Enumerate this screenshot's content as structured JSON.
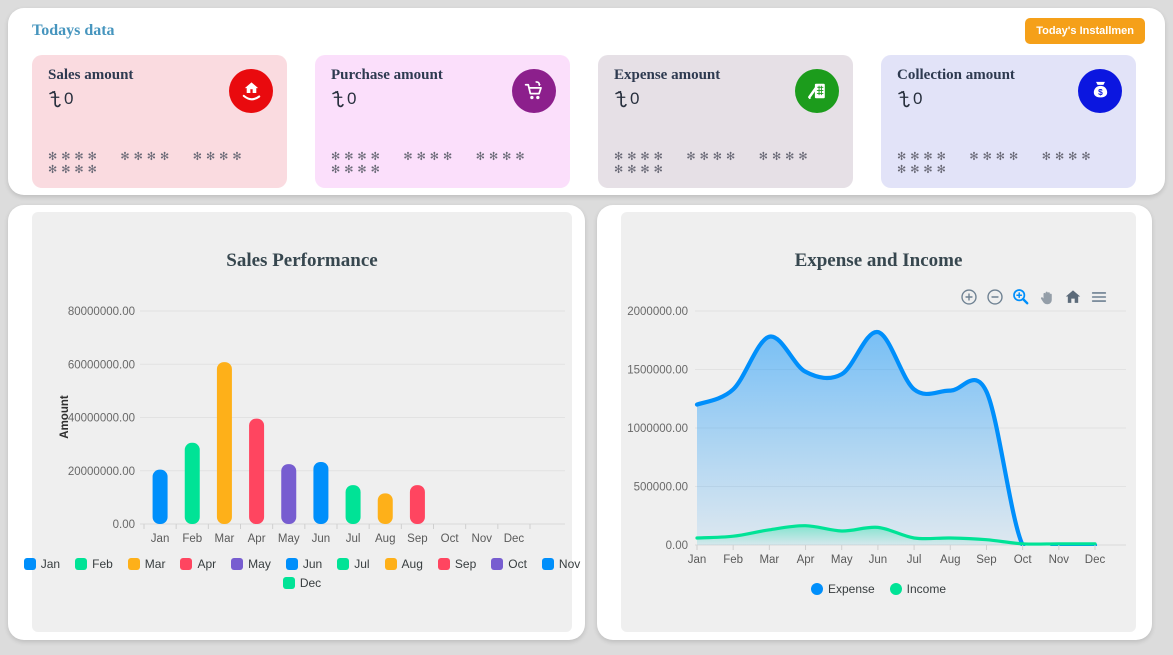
{
  "header": {
    "title": "Todays data",
    "title_color": "#4695BE",
    "button_label": "Today's Installmen",
    "button_bg": "#F5A019"
  },
  "cards": [
    {
      "title": "Sales amount",
      "currency": "৳",
      "amount": "0",
      "masked": "✻✻✻✻ ✻✻✻✻ ✻✻✻✻ ✻✻✻✻",
      "bg": "#FADBE0",
      "icon": "hand-house-icon",
      "icon_bg": "#E90A0E"
    },
    {
      "title": "Purchase amount",
      "currency": "৳",
      "amount": "0",
      "masked": "✻✻✻✻ ✻✻✻✻ ✻✻✻✻ ✻✻✻✻",
      "bg": "#FBDFFB",
      "icon": "shopping-cart-icon",
      "icon_bg": "#8C1F8C"
    },
    {
      "title": "Expense amount",
      "currency": "৳",
      "amount": "0",
      "masked": "✻✻✻✻ ✻✻✻✻ ✻✻✻✻ ✻✻✻✻",
      "bg": "#E6E0E6",
      "icon": "invoice-pen-icon",
      "icon_bg": "#1C9C1C"
    },
    {
      "title": "Collection amount",
      "currency": "৳",
      "amount": "0",
      "masked": "✻✻✻✻ ✻✻✻✻ ✻✻✻✻ ✻✻✻✻",
      "bg": "#E2E3F8",
      "icon": "money-bag-icon",
      "icon_bg": "#0B16E0"
    }
  ],
  "chart_data": [
    {
      "type": "bar",
      "title": "Sales Performance",
      "xlabel": "",
      "ylabel": "Amount",
      "categories": [
        "Jan",
        "Feb",
        "Mar",
        "Apr",
        "May",
        "Jun",
        "Jul",
        "Aug",
        "Sep",
        "Oct",
        "Nov",
        "Dec"
      ],
      "values": [
        20400000,
        30500000,
        60800000,
        39600000,
        22500000,
        23300000,
        14600000,
        11500000,
        14600000,
        0,
        0,
        0
      ],
      "ylim": [
        0,
        80000000
      ],
      "ytick_step": 20000000,
      "ytick_labels": [
        "0.00",
        "20000000.00",
        "40000000.00",
        "60000000.00",
        "80000000.00"
      ],
      "colors": [
        "#008FFB",
        "#00E396",
        "#FEB019",
        "#FF4560",
        "#775DD0"
      ],
      "grid": true,
      "legend_position": "bottom",
      "legend_entries": [
        "Jan",
        "Feb",
        "Mar",
        "Apr",
        "May",
        "Jun",
        "Jul",
        "Aug",
        "Sep",
        "Oct",
        "Nov",
        "Dec"
      ]
    },
    {
      "type": "area",
      "title": "Expense and Income",
      "xlabel": "",
      "ylabel": "",
      "x": [
        "Jan",
        "Feb",
        "Mar",
        "Apr",
        "May",
        "Jun",
        "Jul",
        "Aug",
        "Sep",
        "Oct",
        "Nov",
        "Dec"
      ],
      "series": [
        {
          "name": "Expense",
          "color": "#008FFB",
          "values": [
            1200000,
            1330000,
            1780000,
            1480000,
            1460000,
            1820000,
            1330000,
            1320000,
            1310000,
            0,
            0,
            0
          ]
        },
        {
          "name": "Income",
          "color": "#00E396",
          "values": [
            60000,
            75000,
            130000,
            165000,
            120000,
            150000,
            60000,
            60000,
            45000,
            10000,
            10000,
            10000
          ]
        }
      ],
      "ylim": [
        0,
        2000000
      ],
      "ytick_step": 500000,
      "ytick_labels": [
        "0.00",
        "500000.00",
        "1000000.00",
        "1500000.00",
        "2000000.00"
      ],
      "grid": true,
      "legend_position": "bottom",
      "toolbar": [
        "zoom-in",
        "zoom-out",
        "selection-zoom",
        "pan",
        "home",
        "menu"
      ]
    }
  ]
}
